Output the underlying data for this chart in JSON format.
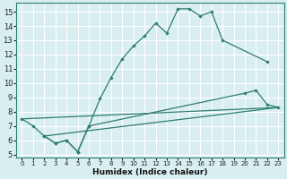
{
  "xlabel": "Humidex (Indice chaleur)",
  "bg_color": "#d8eef0",
  "grid_color": "#c8dfe2",
  "line_color": "#2e7d6e",
  "xlim": [
    -0.5,
    23.5
  ],
  "ylim": [
    4.8,
    15.6
  ],
  "xticks": [
    0,
    1,
    2,
    3,
    4,
    5,
    6,
    7,
    8,
    9,
    10,
    11,
    12,
    13,
    14,
    15,
    16,
    17,
    18,
    19,
    20,
    21,
    22,
    23
  ],
  "yticks": [
    5,
    6,
    7,
    8,
    9,
    10,
    11,
    12,
    13,
    14,
    15
  ],
  "line1_x": [
    0,
    1,
    2,
    3,
    4,
    5,
    6,
    7,
    8,
    9,
    10,
    11,
    12,
    13,
    14,
    15,
    16,
    17,
    18,
    22
  ],
  "line1_y": [
    7.5,
    7.0,
    6.3,
    5.8,
    6.0,
    5.2,
    7.0,
    8.9,
    10.4,
    11.7,
    12.6,
    13.3,
    14.2,
    13.5,
    15.2,
    15.2,
    14.7,
    15.0,
    13.0,
    11.5
  ],
  "line2_x": [
    0,
    23
  ],
  "line2_y": [
    7.5,
    8.3
  ],
  "line3_x": [
    2,
    23
  ],
  "line3_y": [
    6.3,
    8.3
  ],
  "line4_x": [
    2,
    3,
    4,
    5,
    6,
    20,
    21,
    22,
    23
  ],
  "line4_y": [
    6.3,
    5.8,
    6.0,
    5.2,
    7.0,
    9.3,
    9.5,
    8.5,
    8.3
  ]
}
